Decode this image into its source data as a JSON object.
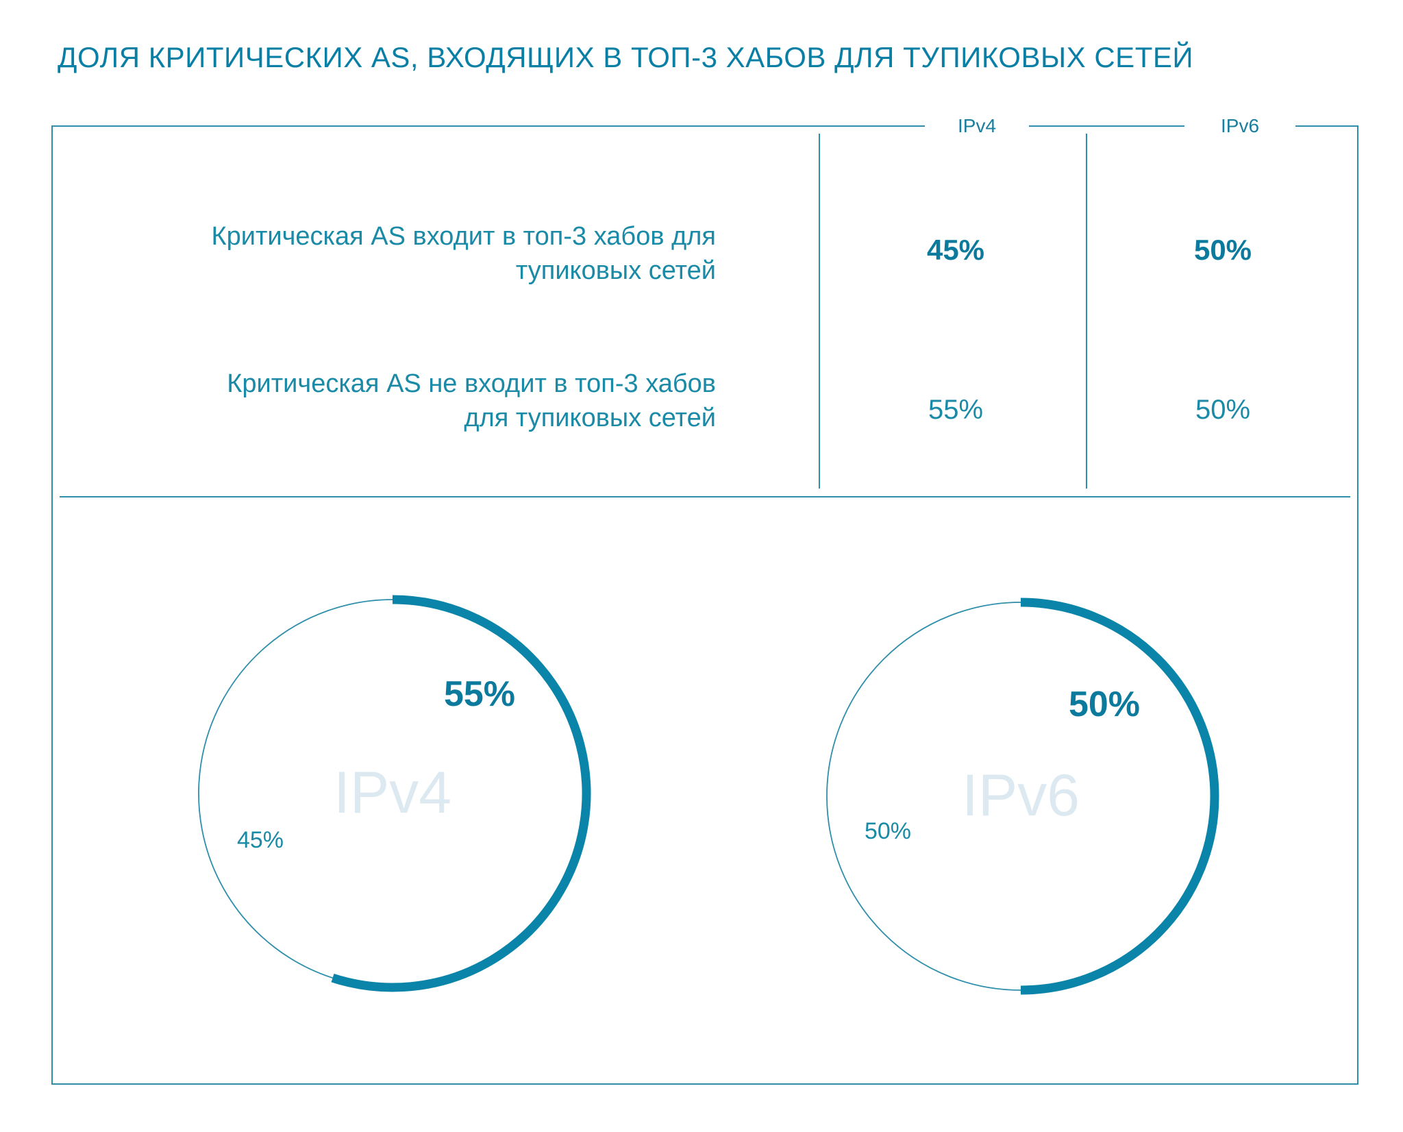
{
  "title": "ДОЛЯ КРИТИЧЕСКИХ AS, ВХОДЯЩИХ В ТОП-3 ХАБОВ ДЛЯ ТУПИКОВЫХ СЕТЕЙ",
  "colors": {
    "accent": "#0a84a8",
    "line": "#2f8fab",
    "text": "#1a8aa6",
    "watermark": "#dde9f1"
  },
  "table": {
    "columns": [
      "IPv4",
      "IPv6"
    ],
    "rows": [
      {
        "label_line1": "Критическая AS входит в топ-3 хабов для",
        "label_line2": "тупиковых сетей",
        "values": [
          "45%",
          "50%"
        ]
      },
      {
        "label_line1": "Критическая AS не входит в топ-3 хабов",
        "label_line2": "для тупиковых сетей",
        "values": [
          "55%",
          "50%"
        ]
      }
    ]
  },
  "chart_data": [
    {
      "type": "pie",
      "title": "IPv4",
      "slices": [
        {
          "label": "55%",
          "value": 55,
          "highlight": true
        },
        {
          "label": "45%",
          "value": 45,
          "highlight": false
        }
      ]
    },
    {
      "type": "pie",
      "title": "IPv6",
      "slices": [
        {
          "label": "50%",
          "value": 50,
          "highlight": true
        },
        {
          "label": "50%",
          "value": 50,
          "highlight": false
        }
      ]
    }
  ]
}
